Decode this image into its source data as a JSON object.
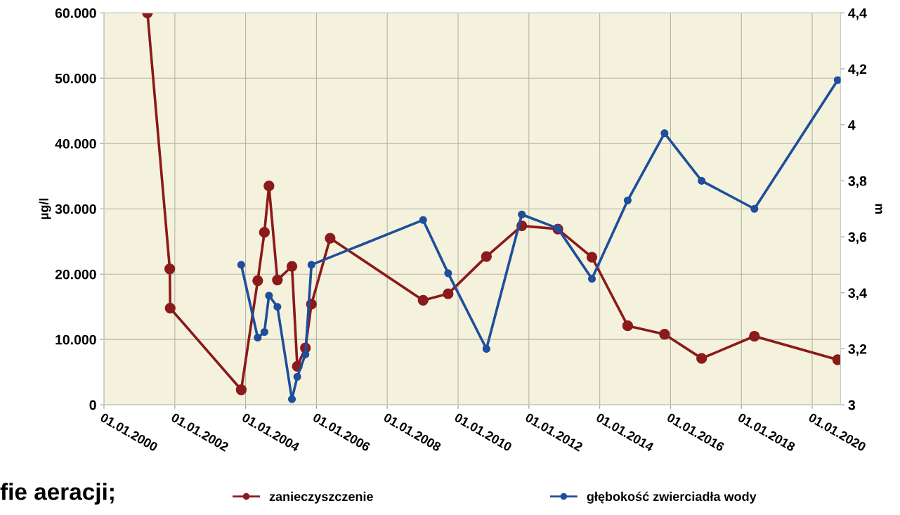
{
  "chart_data": {
    "type": "line",
    "ylabel": "µg/l",
    "y2label": "m",
    "annotations": [
      "fie aeracji;"
    ],
    "xlim": [
      "2000-01-01",
      "2020-10-20"
    ],
    "xticks": [
      {
        "value": "2000-01-01",
        "label": "01.01.2000"
      },
      {
        "value": "2002-01-01",
        "label": "01.01.2002"
      },
      {
        "value": "2004-01-01",
        "label": "01.01.2004"
      },
      {
        "value": "2006-01-01",
        "label": "01.01.2006"
      },
      {
        "value": "2008-01-01",
        "label": "01.01.2008"
      },
      {
        "value": "2010-01-01",
        "label": "01.01.2010"
      },
      {
        "value": "2012-01-01",
        "label": "01.01.2012"
      },
      {
        "value": "2014-01-01",
        "label": "01.01.2014"
      },
      {
        "value": "2016-01-01",
        "label": "01.01.2016"
      },
      {
        "value": "2018-01-01",
        "label": "01.01.2018"
      },
      {
        "value": "2020-01-01",
        "label": "01.01.2020"
      }
    ],
    "ylim": [
      0,
      60000
    ],
    "yticks": [
      0,
      {
        "value": 10000,
        "label": "10.000"
      },
      {
        "value": 20000,
        "label": "20.000"
      },
      {
        "value": 30000,
        "label": "30.000"
      },
      {
        "value": 40000,
        "label": "40.000"
      },
      {
        "value": 50000,
        "label": "50.000"
      },
      {
        "value": 60000,
        "label": "60.000"
      }
    ],
    "y2lim": [
      3,
      4.4
    ],
    "y2ticks": [
      3,
      {
        "value": 3.2,
        "label": "3,2"
      },
      {
        "value": 3.4,
        "label": "3,4"
      },
      {
        "value": 3.6,
        "label": "3,6"
      },
      {
        "value": 3.8,
        "label": "3,8"
      },
      4,
      {
        "value": 4.2,
        "label": "4,2"
      },
      {
        "value": 4.4,
        "label": "4,4"
      }
    ],
    "grid": true,
    "legend": "bottom",
    "marker": "circle",
    "line_style": "solid",
    "series": [
      {
        "name": "zanieczyszczenie",
        "color": "#8b1a1a",
        "x": [
          "2001-03-25",
          "2001-11-10",
          "2001-11-14",
          "2003-11-17",
          "2004-05-05",
          "2004-07-13",
          "2004-08-29",
          "2004-11-24",
          "2005-04-23",
          "2005-06-17",
          "2005-09-09",
          "2005-11-10",
          "2006-05-22",
          "2009-01-05",
          "2009-09-20",
          "2010-10-20",
          "2011-10-20",
          "2012-10-26",
          "2013-10-12",
          "2014-10-16",
          "2015-10-31",
          "2016-11-17",
          "2018-05-15",
          "2020-09-20"
        ],
        "values": [
          60000,
          20800,
          14800,
          2300,
          19000,
          26400,
          33500,
          19100,
          21200,
          5900,
          8700,
          15400,
          25500,
          16000,
          17000,
          22700,
          27400,
          26900,
          22600,
          12100,
          10800,
          7100,
          10500,
          6900
        ]
      },
      {
        "name": "głębokość zwierciadła wody",
        "color": "#1f4e9c",
        "axis": "y2",
        "x": [
          "2003-11-17",
          "2004-05-05",
          "2004-07-13",
          "2004-08-29",
          "2004-11-24",
          "2005-04-23",
          "2005-06-17",
          "2005-09-09",
          "2005-11-10",
          "2009-01-05",
          "2009-09-20",
          "2010-10-20",
          "2011-10-20",
          "2012-10-26",
          "2013-10-12",
          "2014-10-16",
          "2015-10-31",
          "2016-11-17",
          "2018-05-15",
          "2020-09-20"
        ],
        "values": [
          3.5,
          3.24,
          3.26,
          3.39,
          3.35,
          3.02,
          3.1,
          3.18,
          3.5,
          3.66,
          3.47,
          3.2,
          3.68,
          3.63,
          3.45,
          3.73,
          3.97,
          3.8,
          3.7,
          4.16
        ]
      }
    ]
  }
}
